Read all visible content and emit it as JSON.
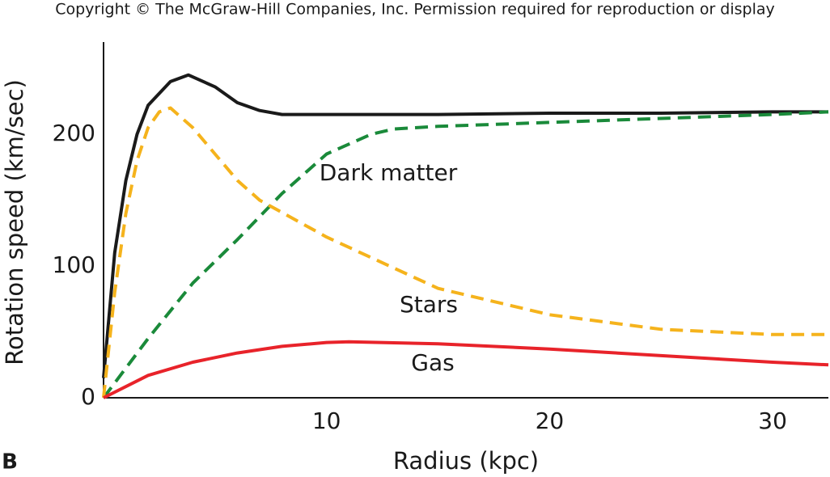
{
  "chart_data": {
    "type": "line",
    "title": "Copyright © The McGraw-Hill Companies, Inc. Permission required for reproduction or display",
    "panel_label": "B",
    "xlabel": "Radius (kpc)",
    "ylabel": "Rotation speed (km/sec)",
    "xlim": [
      0,
      32.5
    ],
    "ylim": [
      0,
      270
    ],
    "xticks": [
      10,
      20,
      30
    ],
    "yticks": [
      0,
      100,
      200
    ],
    "grid": false,
    "series": [
      {
        "color": "#1a1a1a",
        "dashed": false,
        "x": [
          0,
          0.5,
          1,
          1.5,
          2,
          3,
          3.8,
          5,
          6,
          7,
          8,
          10,
          15,
          20,
          25,
          30,
          32.5
        ],
        "values": [
          15,
          110,
          165,
          200,
          222,
          240,
          245,
          236,
          224,
          218,
          215,
          215,
          215,
          216,
          216,
          217,
          217
        ]
      },
      {
        "name": "Dark matter",
        "color": "#1a8a3a",
        "dashed": true,
        "x": [
          0,
          2,
          4,
          6,
          8,
          10,
          12,
          13,
          15,
          20,
          25,
          30,
          32.5
        ],
        "values": [
          0,
          45,
          87,
          120,
          155,
          185,
          200,
          204,
          206,
          209,
          212,
          215,
          217
        ]
      },
      {
        "name": "Stars",
        "color": "#f5b31c",
        "dashed": true,
        "x": [
          0,
          0.5,
          1,
          1.5,
          2,
          2.5,
          3,
          4,
          5,
          6,
          7,
          10,
          15,
          20,
          25,
          30,
          32.5
        ],
        "values": [
          0,
          80,
          140,
          180,
          205,
          217,
          220,
          205,
          185,
          165,
          150,
          122,
          83,
          63,
          52,
          48,
          48
        ]
      },
      {
        "name": "Gas",
        "color": "#e8232a",
        "dashed": false,
        "x": [
          0,
          2,
          4,
          6,
          8,
          10,
          11,
          15,
          20,
          25,
          30,
          32.5
        ],
        "values": [
          0,
          17,
          27,
          34,
          39,
          42,
          42.5,
          41,
          37,
          32,
          27,
          25
        ]
      }
    ]
  }
}
